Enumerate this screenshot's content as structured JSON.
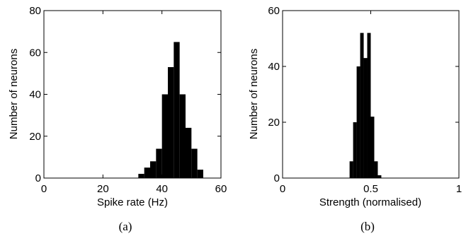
{
  "chart_data": [
    {
      "type": "bar",
      "subplot_caption": "(a)",
      "xlabel": "Spike rate (Hz)",
      "ylabel": "Number of neurons",
      "xlim": [
        0,
        60
      ],
      "ylim": [
        0,
        80
      ],
      "xticks": [
        "0",
        "20",
        "40",
        "60"
      ],
      "yticks": [
        "0",
        "20",
        "40",
        "60",
        "80"
      ],
      "bin_width": 2,
      "bins": [
        {
          "x": 33,
          "value": 2
        },
        {
          "x": 35,
          "value": 5
        },
        {
          "x": 37,
          "value": 8
        },
        {
          "x": 39,
          "value": 14
        },
        {
          "x": 41,
          "value": 40
        },
        {
          "x": 43,
          "value": 53
        },
        {
          "x": 45,
          "value": 65
        },
        {
          "x": 47,
          "value": 40
        },
        {
          "x": 49,
          "value": 24
        },
        {
          "x": 51,
          "value": 14
        },
        {
          "x": 53,
          "value": 4
        }
      ],
      "grid": false
    },
    {
      "type": "bar",
      "subplot_caption": "(b)",
      "xlabel": "Strength (normalised)",
      "ylabel": "Number of neurons",
      "xlim": [
        0,
        1
      ],
      "ylim": [
        0,
        60
      ],
      "xticks": [
        "0",
        "0.5",
        "1"
      ],
      "yticks": [
        "0",
        "20",
        "40",
        "60"
      ],
      "bin_width": 0.02,
      "bins": [
        {
          "x": 0.39,
          "value": 6
        },
        {
          "x": 0.41,
          "value": 20
        },
        {
          "x": 0.43,
          "value": 40
        },
        {
          "x": 0.45,
          "value": 52
        },
        {
          "x": 0.47,
          "value": 43
        },
        {
          "x": 0.49,
          "value": 52
        },
        {
          "x": 0.51,
          "value": 22
        },
        {
          "x": 0.53,
          "value": 6
        },
        {
          "x": 0.55,
          "value": 1
        }
      ],
      "grid": false
    }
  ]
}
